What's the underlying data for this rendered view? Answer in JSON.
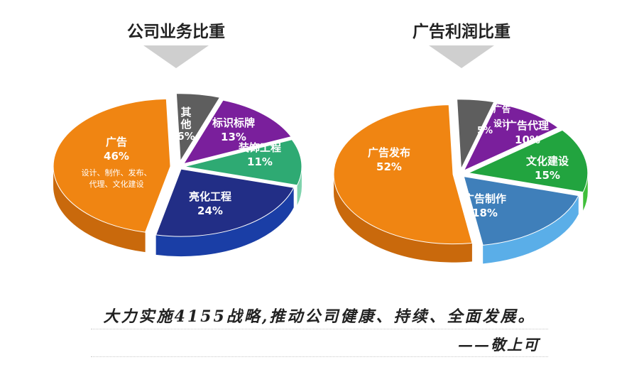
{
  "chart_data": [
    {
      "type": "pie",
      "title": "公司业务比重",
      "slices": [
        {
          "label": "其他",
          "percent": 6,
          "color": "#4d4d4d",
          "top": "#5e5e5e",
          "side": "#2c2c2c"
        },
        {
          "label": "标识标牌",
          "percent": 13,
          "color": "#6d1b8c",
          "top": "#7a1f9c",
          "side": "#4a0f63"
        },
        {
          "label": "装饰工程",
          "percent": 11,
          "color": "#27a06a",
          "top": "#2eaa73",
          "side": "#7fd3ad"
        },
        {
          "label": "亮化工程",
          "percent": 24,
          "color": "#1b2776",
          "top": "#222e86",
          "side": "#1a3ea6"
        },
        {
          "label": "广告",
          "percent": 46,
          "color": "#ef7d0d",
          "top": "#f08512",
          "side": "#c9690c",
          "note": [
            "设计、制作、发布、",
            "代理、文化建设"
          ]
        }
      ]
    },
    {
      "type": "pie",
      "title": "广告利润比重",
      "slices": [
        {
          "label": "广告设计",
          "percent": 5,
          "color": "#4d4d4d",
          "top": "#5e5e5e",
          "side": "#2c2c2c"
        },
        {
          "label": "广告代理",
          "percent": 10,
          "color": "#6d1b8c",
          "top": "#7a1f9c",
          "side": "#4a0f63"
        },
        {
          "label": "文化建设",
          "percent": 15,
          "color": "#1f9a3a",
          "top": "#22a43f",
          "side": "#3fbf3a"
        },
        {
          "label": "广告制作",
          "percent": 18,
          "color": "#3a76ad",
          "top": "#3f7fba",
          "side": "#5aaee8"
        },
        {
          "label": "广告发布",
          "percent": 52,
          "color": "#ef7d0d",
          "top": "#f08512",
          "side": "#c9690c"
        }
      ]
    }
  ],
  "slogan": "大力实施4155战略,推动公司健康、持续、全面发展。",
  "signature": "——敬上可"
}
